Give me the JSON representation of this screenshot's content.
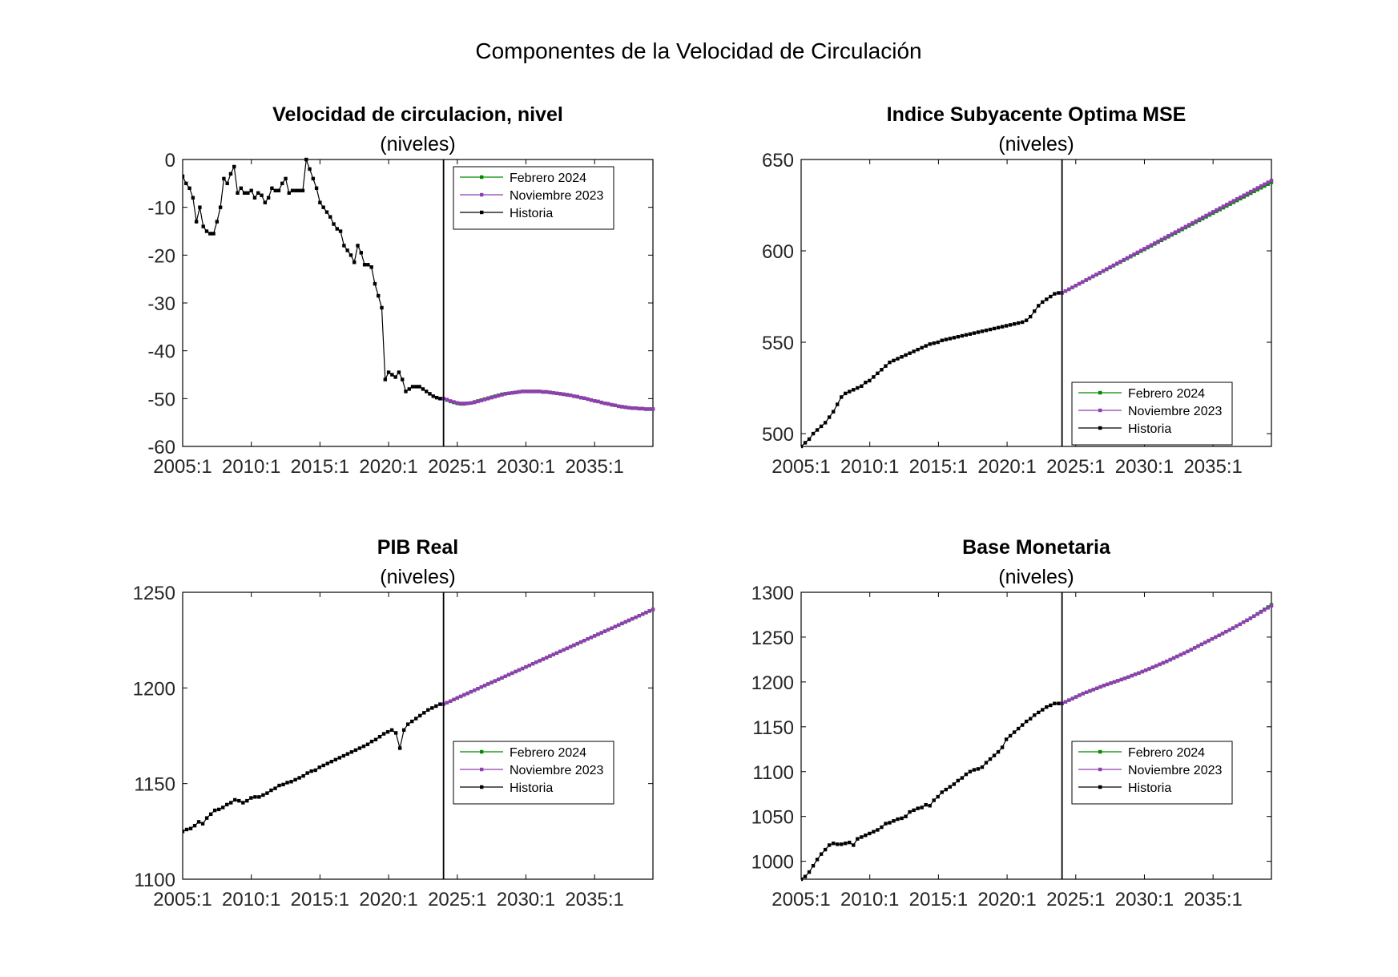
{
  "figure": {
    "title": "Componentes de la Velocidad de Circulación",
    "subtitle": "(niveles)"
  },
  "colors": {
    "febrero": "#008a00",
    "noviembre": "#8e3fb0",
    "historia": "#000000",
    "axis": "#000000"
  },
  "legend_entries": [
    "Febrero 2024",
    "Noviembre 2023",
    "Historia"
  ],
  "chart_data": [
    {
      "type": "line",
      "title": "Velocidad de circulacion, nivel",
      "subtitle": "(niveles)",
      "xlabel": "",
      "ylabel": "",
      "xlim": [
        2005.0,
        2039.25
      ],
      "ylim": [
        -60,
        0
      ],
      "x_ticks": [
        2005,
        2010,
        2015,
        2020,
        2025,
        2030,
        2035
      ],
      "x_tick_labels": [
        "2005:1",
        "2010:1",
        "2015:1",
        "2020:1",
        "2025:1",
        "2030:1",
        "2035:1"
      ],
      "y_ticks": [
        -60,
        -50,
        -40,
        -30,
        -20,
        -10,
        0
      ],
      "y_tick_labels": [
        "-60",
        "-50",
        "-40",
        "-30",
        "-20",
        "-10",
        "0"
      ],
      "vline_x": 2024.0,
      "legend_position": "top-right",
      "grid": false,
      "series": [
        {
          "name": "Historia",
          "x_start": 2005.0,
          "x_end": 2023.75,
          "values": [
            -3.5,
            -5,
            -6,
            -8,
            -13,
            -10,
            -14,
            -15,
            -15.5,
            -15.5,
            -13,
            -10,
            -4,
            -5,
            -3,
            -1.5,
            -7,
            -6,
            -7,
            -7,
            -6.5,
            -8,
            -7,
            -7.5,
            -9,
            -8,
            -6,
            -6.5,
            -6.5,
            -5,
            -4,
            -7,
            -6.5,
            -6.5,
            -6.5,
            -6.5,
            0,
            -2,
            -4,
            -6,
            -9,
            -10,
            -11,
            -12,
            -13.5,
            -14.5,
            -15,
            -18,
            -19,
            -20,
            -21.5,
            -18,
            -19.5,
            -22,
            -22,
            -22.5,
            -26,
            -28.5,
            -31,
            -46,
            -44.5,
            -45,
            -45.5,
            -44.5,
            -46,
            -48.5,
            -48,
            -47.5,
            -47.5,
            -47.5,
            -48,
            -48.5,
            -49,
            -49.5,
            -49.8,
            -50
          ]
        },
        {
          "name": "Noviembre 2023",
          "x_start": 2024.0,
          "x_end": 2039.25,
          "values": [
            -50,
            -50.2,
            -50.5,
            -50.7,
            -50.9,
            -51.0,
            -51.0,
            -51.0,
            -50.9,
            -50.8,
            -50.6,
            -50.4,
            -50.2,
            -50.0,
            -49.8,
            -49.6,
            -49.4,
            -49.2,
            -49.0,
            -48.9,
            -48.8,
            -48.7,
            -48.6,
            -48.5,
            -48.5,
            -48.5,
            -48.5,
            -48.5,
            -48.5,
            -48.6,
            -48.6,
            -48.7,
            -48.8,
            -48.9,
            -49.0,
            -49.1,
            -49.2,
            -49.3,
            -49.5,
            -49.6,
            -49.8,
            -49.9,
            -50.1,
            -50.3,
            -50.5,
            -50.6,
            -50.8,
            -51.0,
            -51.1,
            -51.3,
            -51.4,
            -51.6,
            -51.7,
            -51.8,
            -51.9,
            -52.0,
            -52.0,
            -52.1,
            -52.1,
            -52.2,
            -52.2,
            -52.2
          ]
        },
        {
          "name": "Febrero 2024",
          "x_start": 2024.0,
          "x_end": 2039.25,
          "values": [
            -50,
            -50.3,
            -50.6,
            -50.8,
            -51.0,
            -51.1,
            -51.1,
            -51.0,
            -50.9,
            -50.7,
            -50.5,
            -50.3,
            -50.1,
            -49.9,
            -49.7,
            -49.5,
            -49.3,
            -49.1,
            -49.0,
            -48.9,
            -48.8,
            -48.7,
            -48.6,
            -48.5,
            -48.5,
            -48.5,
            -48.5,
            -48.5,
            -48.5,
            -48.6,
            -48.6,
            -48.7,
            -48.8,
            -48.9,
            -49.0,
            -49.1,
            -49.2,
            -49.3,
            -49.5,
            -49.6,
            -49.8,
            -49.9,
            -50.1,
            -50.3,
            -50.5,
            -50.6,
            -50.8,
            -51.0,
            -51.1,
            -51.3,
            -51.4,
            -51.6,
            -51.7,
            -51.8,
            -51.9,
            -52.0,
            -52.0,
            -52.1,
            -52.1,
            -52.2,
            -52.2,
            -52.2
          ]
        }
      ]
    },
    {
      "type": "line",
      "title": "Indice Subyacente Optima MSE",
      "subtitle": "(niveles)",
      "xlabel": "",
      "ylabel": "",
      "xlim": [
        2005.0,
        2039.25
      ],
      "ylim": [
        493,
        650
      ],
      "x_ticks": [
        2005,
        2010,
        2015,
        2020,
        2025,
        2030,
        2035
      ],
      "x_tick_labels": [
        "2005:1",
        "2010:1",
        "2015:1",
        "2020:1",
        "2025:1",
        "2030:1",
        "2035:1"
      ],
      "y_ticks": [
        500,
        550,
        600,
        650
      ],
      "y_tick_labels": [
        "500",
        "550",
        "600",
        "650"
      ],
      "vline_x": 2024.0,
      "legend_position": "bottom-right",
      "grid": false,
      "series": [
        {
          "name": "Historia",
          "x_start": 2005.0,
          "x_end": 2023.75,
          "values": [
            493,
            495,
            497,
            500,
            502,
            504,
            506,
            509,
            512,
            516,
            520,
            522,
            523,
            524,
            525,
            526,
            528,
            529,
            531,
            533,
            535,
            537,
            539,
            540,
            541,
            542,
            543,
            544,
            545,
            546,
            547,
            548,
            549,
            549.5,
            550,
            551,
            551.5,
            552,
            552.5,
            553,
            553.5,
            554,
            554.5,
            555,
            555.5,
            556,
            556.5,
            557,
            557.5,
            558,
            558.5,
            559,
            559.5,
            560,
            560.5,
            561,
            562,
            564,
            567,
            570,
            572,
            573.5,
            575,
            576.5,
            577
          ]
        },
        {
          "name": "Noviembre 2023",
          "x_start": 2024.0,
          "x_end": 2039.25,
          "values": [
            577,
            638.5
          ]
        },
        {
          "name": "Febrero 2024",
          "x_start": 2024.0,
          "x_end": 2039.25,
          "values": [
            577,
            637.5
          ]
        }
      ]
    },
    {
      "type": "line",
      "title": "PIB Real",
      "subtitle": "(niveles)",
      "xlabel": "",
      "ylabel": "",
      "xlim": [
        2005.0,
        2039.25
      ],
      "ylim": [
        1100,
        1250
      ],
      "x_ticks": [
        2005,
        2010,
        2015,
        2020,
        2025,
        2030,
        2035
      ],
      "x_tick_labels": [
        "2005:1",
        "2010:1",
        "2015:1",
        "2020:1",
        "2025:1",
        "2030:1",
        "2035:1"
      ],
      "y_ticks": [
        1100,
        1150,
        1200,
        1250
      ],
      "y_tick_labels": [
        "1100",
        "1150",
        "1200",
        "1250"
      ],
      "vline_x": 2024.0,
      "legend_position": "bottom-right",
      "grid": false,
      "series": [
        {
          "name": "Historia",
          "x_start": 2005.0,
          "x_end": 2023.75,
          "values": [
            1125,
            1126,
            1126.5,
            1128,
            1130,
            1129,
            1132,
            1134,
            1136,
            1136.5,
            1137.5,
            1139,
            1140,
            1141.5,
            1141,
            1140,
            1141,
            1142.5,
            1143,
            1143,
            1144,
            1145,
            1146.5,
            1147.5,
            1149,
            1149.5,
            1150.5,
            1151,
            1152,
            1153,
            1154,
            1155.5,
            1156.5,
            1157,
            1158.5,
            1159.5,
            1160.5,
            1161.5,
            1162.5,
            1163.5,
            1164.5,
            1165.5,
            1166.5,
            1167.5,
            1168.5,
            1169.5,
            1170.5,
            1172,
            1173,
            1174.5,
            1176,
            1177,
            1178,
            1176.5,
            1168.5,
            1178,
            1181,
            1182.5,
            1184,
            1185.5,
            1187,
            1188.5,
            1189.5,
            1190.5,
            1191.5
          ]
        },
        {
          "name": "Noviembre 2023",
          "x_start": 2024.0,
          "x_end": 2039.25,
          "values": [
            1191.5,
            1241
          ]
        },
        {
          "name": "Febrero 2024",
          "x_start": 2024.0,
          "x_end": 2039.25,
          "values": [
            1191.5,
            1241
          ]
        }
      ]
    },
    {
      "type": "line",
      "title": "Base Monetaria",
      "subtitle": "(niveles)",
      "xlabel": "",
      "ylabel": "",
      "xlim": [
        2005.0,
        2039.25
      ],
      "ylim": [
        980,
        1300
      ],
      "x_ticks": [
        2005,
        2010,
        2015,
        2020,
        2025,
        2030,
        2035
      ],
      "x_tick_labels": [
        "2005:1",
        "2010:1",
        "2015:1",
        "2020:1",
        "2025:1",
        "2030:1",
        "2035:1"
      ],
      "y_ticks": [
        1000,
        1050,
        1100,
        1150,
        1200,
        1250,
        1300
      ],
      "y_tick_labels": [
        "1000",
        "1050",
        "1100",
        "1150",
        "1200",
        "1250",
        "1300"
      ],
      "vline_x": 2024.0,
      "legend_position": "bottom-right",
      "grid": false,
      "series": [
        {
          "name": "Historia",
          "x_start": 2005.0,
          "x_end": 2023.75,
          "values": [
            980,
            983,
            988,
            995,
            1002,
            1008,
            1013,
            1018,
            1020,
            1019,
            1019,
            1020,
            1021,
            1018,
            1025,
            1027,
            1029,
            1031,
            1033,
            1035,
            1038,
            1042,
            1043,
            1045,
            1047,
            1048,
            1050,
            1055,
            1057,
            1059,
            1060,
            1063,
            1062,
            1068,
            1072,
            1077,
            1080,
            1083,
            1086,
            1090,
            1093,
            1097,
            1100,
            1102,
            1103,
            1105,
            1110,
            1114,
            1118,
            1122,
            1127,
            1136,
            1140,
            1144,
            1148,
            1152,
            1156,
            1159,
            1163,
            1166,
            1169,
            1172,
            1174,
            1176,
            1176
          ]
        },
        {
          "name": "Noviembre 2023",
          "x_start": 2024.0,
          "x_end": 2039.25,
          "values": [
            1176,
            1187,
            1196,
            1204,
            1213,
            1223,
            1234,
            1246,
            1258,
            1271,
            1285
          ]
        },
        {
          "name": "Febrero 2024",
          "x_start": 2024.0,
          "x_end": 2039.25,
          "values": [
            1176,
            1187,
            1196,
            1204,
            1213,
            1223,
            1234,
            1246,
            1258,
            1271,
            1286
          ]
        }
      ]
    }
  ]
}
